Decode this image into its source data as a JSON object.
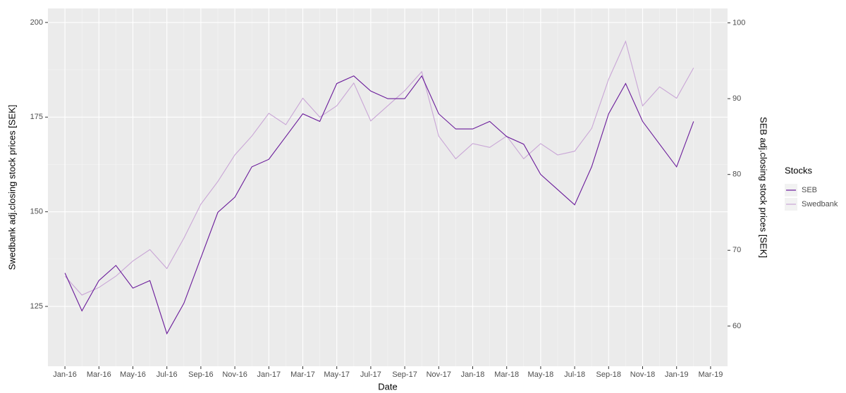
{
  "chart_data": {
    "type": "line",
    "x_label": "Date",
    "y_label": "Swedbank adj.closing stock prices [SEK]",
    "y2_label": "SEB adj.closing stock prices [SEK]",
    "legend_title": "Stocks",
    "legend": "right",
    "grid": true,
    "x": [
      "2016-01",
      "2016-02",
      "2016-03",
      "2016-04",
      "2016-05",
      "2016-06",
      "2016-07",
      "2016-08",
      "2016-09",
      "2016-10",
      "2016-11",
      "2016-12",
      "2017-01",
      "2017-02",
      "2017-03",
      "2017-04",
      "2017-05",
      "2017-06",
      "2017-07",
      "2017-08",
      "2017-09",
      "2017-10",
      "2017-11",
      "2017-12",
      "2018-01",
      "2018-02",
      "2018-03",
      "2018-04",
      "2018-05",
      "2018-06",
      "2018-07",
      "2018-08",
      "2018-09",
      "2018-10",
      "2018-11",
      "2018-12",
      "2019-01",
      "2019-02"
    ],
    "series": [
      {
        "name": "SEB",
        "color": "#6a1b9a",
        "axis": "y2",
        "values": [
          67,
          62,
          66,
          68,
          65,
          66,
          59,
          63,
          69,
          75,
          77,
          81,
          82,
          85,
          88,
          87,
          92,
          93,
          91,
          90,
          90,
          93,
          88,
          86,
          86,
          87,
          85,
          84,
          80,
          78,
          76,
          81,
          88,
          92,
          87,
          84,
          81,
          87
        ]
      },
      {
        "name": "Swedbank",
        "color": "#c9a6d6",
        "values": [
          133,
          128,
          130,
          133,
          137,
          140,
          135,
          143,
          152,
          158,
          165,
          170,
          176,
          173,
          180,
          175,
          178,
          184,
          174,
          178,
          182,
          187,
          170,
          164,
          168,
          167,
          170,
          164,
          168,
          165,
          166,
          172,
          185,
          195,
          178,
          183,
          180,
          188
        ]
      }
    ],
    "xlim": [
      "2015-12",
      "2019-04"
    ],
    "xticks": [
      {
        "value": "2016-01",
        "label": "Jan-16"
      },
      {
        "value": "2016-03",
        "label": "Mar-16"
      },
      {
        "value": "2016-05",
        "label": "May-16"
      },
      {
        "value": "2016-07",
        "label": "Jul-16"
      },
      {
        "value": "2016-09",
        "label": "Sep-16"
      },
      {
        "value": "2016-11",
        "label": "Nov-16"
      },
      {
        "value": "2017-01",
        "label": "Jan-17"
      },
      {
        "value": "2017-03",
        "label": "Mar-17"
      },
      {
        "value": "2017-05",
        "label": "May-17"
      },
      {
        "value": "2017-07",
        "label": "Jul-17"
      },
      {
        "value": "2017-09",
        "label": "Sep-17"
      },
      {
        "value": "2017-11",
        "label": "Nov-17"
      },
      {
        "value": "2018-01",
        "label": "Jan-18"
      },
      {
        "value": "2018-03",
        "label": "Mar-18"
      },
      {
        "value": "2018-05",
        "label": "May-18"
      },
      {
        "value": "2018-07",
        "label": "Jul-18"
      },
      {
        "value": "2018-09",
        "label": "Sep-18"
      },
      {
        "value": "2018-11",
        "label": "Nov-18"
      },
      {
        "value": "2019-01",
        "label": "Jan-19"
      },
      {
        "value": "2019-03",
        "label": "Mar-19"
      }
    ],
    "ylim": [
      109.2,
      203.7
    ],
    "yticks": [
      125,
      150,
      175,
      200
    ],
    "y2lim": [
      54.7,
      101.9
    ],
    "y2ticks": [
      60,
      70,
      80,
      90,
      100
    ]
  }
}
